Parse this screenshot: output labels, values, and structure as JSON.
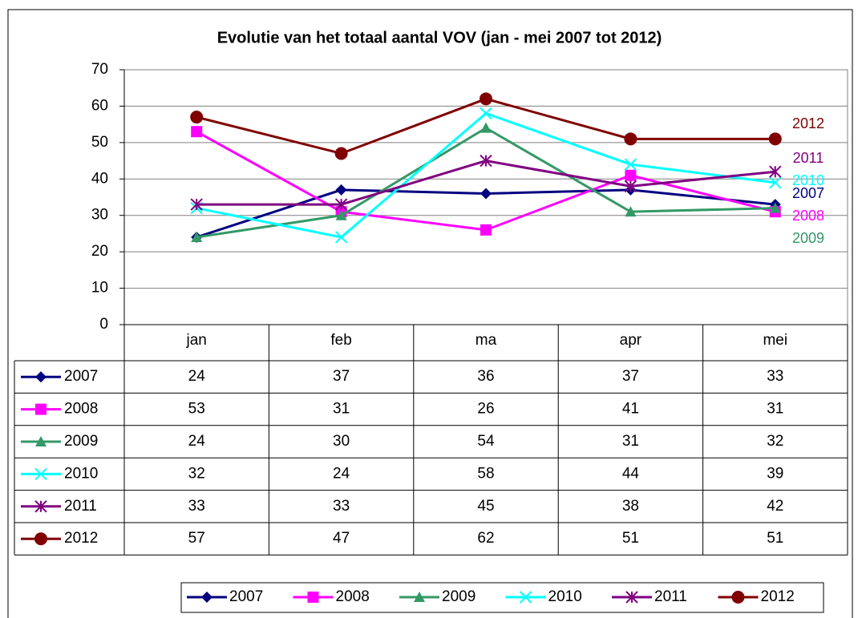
{
  "chart_data": {
    "type": "line",
    "title": "Evolutie van het totaal aantal VOV (jan - mei 2007 tot 2012)",
    "categories": [
      "jan",
      "feb",
      "ma",
      "apr",
      "mei"
    ],
    "series": [
      {
        "name": "2007",
        "color": "#000080",
        "marker": "diamond",
        "values": [
          24,
          37,
          36,
          37,
          33
        ]
      },
      {
        "name": "2008",
        "color": "#ff00ff",
        "marker": "square",
        "values": [
          53,
          31,
          26,
          41,
          31
        ]
      },
      {
        "name": "2009",
        "color": "#339966",
        "marker": "triangle",
        "values": [
          24,
          30,
          54,
          31,
          32
        ]
      },
      {
        "name": "2010",
        "color": "#00ffff",
        "marker": "x",
        "values": [
          32,
          24,
          58,
          44,
          39
        ]
      },
      {
        "name": "2011",
        "color": "#800080",
        "marker": "star",
        "values": [
          33,
          33,
          45,
          38,
          42
        ]
      },
      {
        "name": "2012",
        "color": "#800000",
        "marker": "circle",
        "values": [
          57,
          47,
          62,
          51,
          51
        ]
      }
    ],
    "ylim": [
      0,
      70
    ],
    "yticks": [
      0,
      10,
      20,
      30,
      40,
      50,
      60,
      70
    ],
    "grid": true,
    "legend": "bottom"
  }
}
